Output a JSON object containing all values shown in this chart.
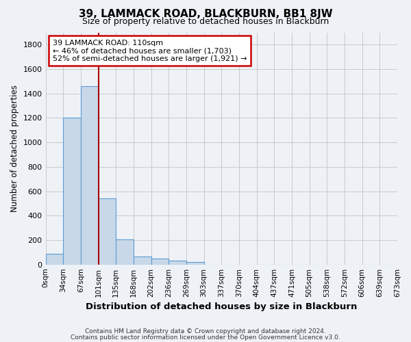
{
  "title": "39, LAMMACK ROAD, BLACKBURN, BB1 8JW",
  "subtitle": "Size of property relative to detached houses in Blackburn",
  "xlabel": "Distribution of detached houses by size in Blackburn",
  "ylabel": "Number of detached properties",
  "footer_lines": [
    "Contains HM Land Registry data © Crown copyright and database right 2024.",
    "Contains public sector information licensed under the Open Government Licence v3.0."
  ],
  "bin_labels": [
    "0sqm",
    "34sqm",
    "67sqm",
    "101sqm",
    "135sqm",
    "168sqm",
    "202sqm",
    "236sqm",
    "269sqm",
    "303sqm",
    "337sqm",
    "370sqm",
    "404sqm",
    "437sqm",
    "471sqm",
    "505sqm",
    "538sqm",
    "572sqm",
    "606sqm",
    "639sqm",
    "673sqm"
  ],
  "bar_values": [
    90,
    1200,
    1460,
    540,
    205,
    65,
    48,
    30,
    18,
    0,
    0,
    0,
    0,
    0,
    0,
    0,
    0,
    0,
    0,
    0
  ],
  "bar_color": "#c8d8e8",
  "bar_edgecolor": "#5b9bd5",
  "ylim": [
    0,
    1900
  ],
  "yticks": [
    0,
    200,
    400,
    600,
    800,
    1000,
    1200,
    1400,
    1600,
    1800
  ],
  "property_line_x": 3.0,
  "property_line_color": "#aa0000",
  "annotation_title": "39 LAMMACK ROAD: 110sqm",
  "annotation_line1": "← 46% of detached houses are smaller (1,703)",
  "annotation_line2": "52% of semi-detached houses are larger (1,921) →",
  "grid_color": "#c8c8c8",
  "background_color": "#eef2f7",
  "title_fontsize": 11,
  "subtitle_fontsize": 9
}
